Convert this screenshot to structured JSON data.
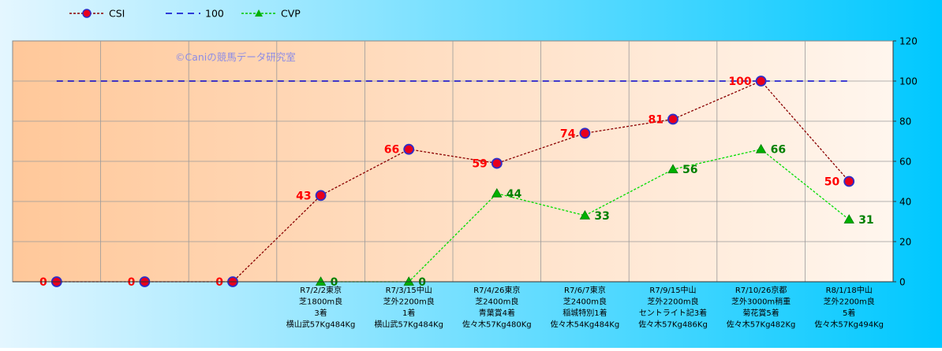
{
  "watermark": "©Caniの競馬データ研究室",
  "legend": {
    "position": "top-left",
    "items": [
      {
        "name": "CSI",
        "color": "#8B0000",
        "marker": "circle",
        "style": "dotted"
      },
      {
        "name": "100",
        "color": "#0000CC",
        "marker": "none",
        "style": "dashed"
      },
      {
        "name": "CVP",
        "color": "#00C800",
        "marker": "triangle",
        "style": "dotted"
      }
    ]
  },
  "colors": {
    "csi_line": "#8B0000",
    "csi_marker_fill": "#E8001C",
    "csi_marker_edge": "#2E2EC8",
    "csi_label": "#FF0000",
    "ref_line": "#0000CC",
    "cvp_line": "#00DD00",
    "cvp_marker": "#00B000",
    "cvp_label": "#008000",
    "plot_bg_left": "#FFC89A",
    "plot_bg_right": "#FFF6EE",
    "outer_bg_light": "#E4F6FF",
    "outer_bg_dark": "#00C8FF"
  },
  "chart_data": {
    "type": "line",
    "title": "",
    "xlabel": "",
    "ylabel": "",
    "ylim": [
      0,
      120
    ],
    "yticks": [
      0,
      20,
      40,
      60,
      80,
      100,
      120
    ],
    "y_axis_side": "right",
    "grid": true,
    "categories": [
      {
        "lines": []
      },
      {
        "lines": []
      },
      {
        "lines": []
      },
      {
        "lines": [
          "R7/2/2東京",
          "芝1800m良",
          "3着",
          "横山武57Kg484Kg"
        ]
      },
      {
        "lines": [
          "R7/3/15中山",
          "芝外2200m良",
          "1着",
          "横山武57Kg484Kg"
        ]
      },
      {
        "lines": [
          "R7/4/26東京",
          "芝2400m良",
          "青葉賞4着",
          "佐々木57Kg480Kg"
        ]
      },
      {
        "lines": [
          "R7/6/7東京",
          "芝2400m良",
          "稲城特別1着",
          "佐々木54Kg484Kg"
        ]
      },
      {
        "lines": [
          "R7/9/15中山",
          "芝外2200m良",
          "セントライト記3着",
          "佐々木57Kg486Kg"
        ]
      },
      {
        "lines": [
          "R7/10/26京都",
          "芝外3000m稍重",
          "菊花賞5着",
          "佐々木57Kg482Kg"
        ]
      },
      {
        "lines": [
          "R8/1/18中山",
          "芝外2200m良",
          "5着",
          "佐々木57Kg494Kg"
        ]
      }
    ],
    "series": [
      {
        "name": "CSI",
        "values": [
          0,
          0,
          0,
          43,
          66,
          59,
          74,
          81,
          100,
          50
        ]
      },
      {
        "name": "100",
        "values": [
          100,
          100,
          100,
          100,
          100,
          100,
          100,
          100,
          100,
          100
        ]
      },
      {
        "name": "CVP",
        "values": [
          null,
          null,
          null,
          0,
          0,
          44,
          33,
          56,
          66,
          31
        ]
      }
    ]
  }
}
